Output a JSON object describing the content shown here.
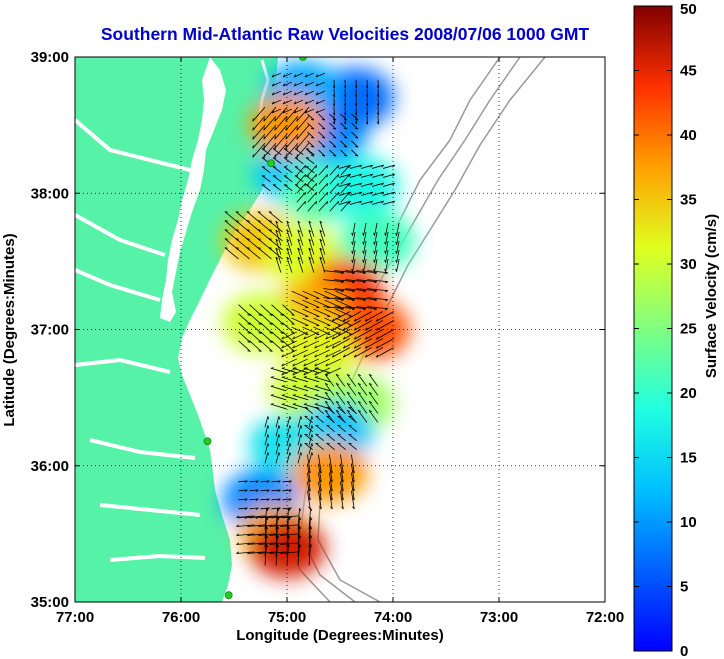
{
  "chart_data": {
    "type": "heatmap",
    "title": "Southern Mid-Atlantic Raw Velocities 2008/07/06 1000 GMT",
    "xlabel": "Longitude (Degrees:Minutes)",
    "ylabel": "Latitude (Degrees:Minutes)",
    "colorbar_label": "Surface Velocity (cm/s)",
    "xlim": [
      -77,
      -72
    ],
    "ylim": [
      35,
      39
    ],
    "x_ticks": [
      {
        "value": -77,
        "label": "77:00"
      },
      {
        "value": -76,
        "label": "76:00"
      },
      {
        "value": -75,
        "label": "75:00"
      },
      {
        "value": -74,
        "label": "74:00"
      },
      {
        "value": -73,
        "label": "73:00"
      },
      {
        "value": -72,
        "label": "72:00"
      }
    ],
    "y_ticks": [
      {
        "value": 35,
        "label": "35:00"
      },
      {
        "value": 36,
        "label": "36:00"
      },
      {
        "value": 37,
        "label": "37:00"
      },
      {
        "value": 38,
        "label": "38:00"
      },
      {
        "value": 39,
        "label": "39:00"
      }
    ],
    "colorbar_range": [
      0,
      50
    ],
    "colorbar_ticks": [
      {
        "value": 0,
        "label": "0"
      },
      {
        "value": 5,
        "label": "5"
      },
      {
        "value": 10,
        "label": "10"
      },
      {
        "value": 15,
        "label": "15"
      },
      {
        "value": 20,
        "label": "20"
      },
      {
        "value": 25,
        "label": "25"
      },
      {
        "value": 30,
        "label": "30"
      },
      {
        "value": 35,
        "label": "35"
      },
      {
        "value": 40,
        "label": "40"
      },
      {
        "value": 45,
        "label": "45"
      },
      {
        "value": 50,
        "label": "50"
      }
    ],
    "colormap": "jet",
    "grid": true,
    "colors": {
      "title": "#0000cc",
      "land": "#55f2a8",
      "bathymetry": "#9a9a9a",
      "station_marker": "#22cc22",
      "vector": "#000000"
    },
    "stations": [
      {
        "lon": -74.85,
        "lat": 39.0
      },
      {
        "lon": -75.15,
        "lat": 38.22
      },
      {
        "lon": -75.75,
        "lat": 36.18
      },
      {
        "lon": -75.55,
        "lat": 35.05
      }
    ],
    "velocity_patches": [
      {
        "lon": -74.6,
        "lat": 38.45,
        "value": 9
      },
      {
        "lon": -74.35,
        "lat": 38.7,
        "value": 7
      },
      {
        "lon": -74.85,
        "lat": 38.75,
        "value": 11
      },
      {
        "lon": -74.95,
        "lat": 38.15,
        "value": 13
      },
      {
        "lon": -74.7,
        "lat": 38.0,
        "value": 22
      },
      {
        "lon": -74.3,
        "lat": 38.05,
        "value": 18
      },
      {
        "lon": -75.0,
        "lat": 38.5,
        "value": 38
      },
      {
        "lon": -74.15,
        "lat": 37.65,
        "value": 21
      },
      {
        "lon": -75.25,
        "lat": 37.65,
        "value": 35
      },
      {
        "lon": -74.85,
        "lat": 37.55,
        "value": 31
      },
      {
        "lon": -74.45,
        "lat": 37.3,
        "value": 44
      },
      {
        "lon": -74.75,
        "lat": 37.15,
        "value": 37
      },
      {
        "lon": -75.25,
        "lat": 37.05,
        "value": 30
      },
      {
        "lon": -74.2,
        "lat": 37.0,
        "value": 42
      },
      {
        "lon": -74.7,
        "lat": 36.85,
        "value": 32
      },
      {
        "lon": -74.8,
        "lat": 36.55,
        "value": 30
      },
      {
        "lon": -74.35,
        "lat": 36.45,
        "value": 27
      },
      {
        "lon": -74.55,
        "lat": 36.25,
        "value": 13
      },
      {
        "lon": -75.0,
        "lat": 36.15,
        "value": 16
      },
      {
        "lon": -74.6,
        "lat": 35.95,
        "value": 38
      },
      {
        "lon": -75.25,
        "lat": 35.75,
        "value": 9
      },
      {
        "lon": -75.1,
        "lat": 35.5,
        "value": 36
      },
      {
        "lon": -75.0,
        "lat": 35.4,
        "value": 46
      }
    ]
  }
}
